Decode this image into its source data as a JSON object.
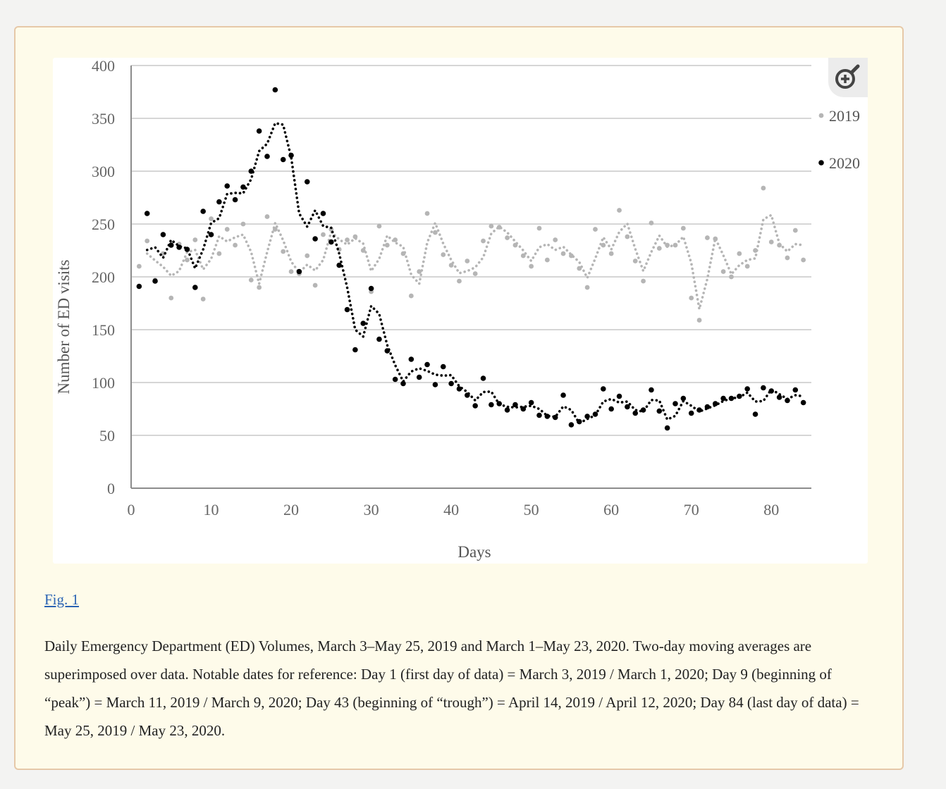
{
  "figure": {
    "link_label": "Fig. 1",
    "caption": "Daily Emergency Department (ED) Volumes, March 3–May 25, 2019 and March 1–May 23, 2020. Two-day moving averages are superimposed over data. Notable dates for reference: Day 1 (first day of data) = March 3, 2019 / March 1, 2020; Day 9 (beginning of “peak”) = March 11, 2019 / March 9, 2020; Day 43 (beginning of “trough”) = April 14, 2019 / April 12, 2020; Day 84 (last day of data) = May 25, 2019 / May 23, 2020.",
    "zoom_icon": "zoom-in-icon"
  },
  "chart_data": {
    "type": "scatter",
    "title": "",
    "xlabel": "Days",
    "ylabel": "Number of ED visits",
    "xlim": [
      0,
      85
    ],
    "ylim": [
      0,
      400
    ],
    "xticks": [
      0,
      10,
      20,
      30,
      40,
      50,
      60,
      70,
      80
    ],
    "yticks": [
      0,
      50,
      100,
      150,
      200,
      250,
      300,
      350,
      400
    ],
    "grid": true,
    "legend_position": "top-right",
    "trendline": "two-day moving average (dotted)",
    "series": [
      {
        "name": "2019",
        "color": "#b5b5b5",
        "x": [
          1,
          2,
          3,
          4,
          5,
          6,
          7,
          8,
          9,
          10,
          11,
          12,
          13,
          14,
          15,
          16,
          17,
          18,
          19,
          20,
          21,
          22,
          23,
          24,
          25,
          26,
          27,
          28,
          29,
          30,
          31,
          32,
          33,
          34,
          35,
          36,
          37,
          38,
          39,
          40,
          41,
          42,
          43,
          44,
          45,
          46,
          47,
          48,
          49,
          50,
          51,
          52,
          53,
          54,
          55,
          56,
          57,
          58,
          59,
          60,
          61,
          62,
          63,
          64,
          65,
          66,
          67,
          68,
          69,
          70,
          71,
          72,
          73,
          74,
          75,
          76,
          77,
          78,
          79,
          80,
          81,
          82,
          83,
          84
        ],
        "values": [
          210,
          234,
          197,
          222,
          180,
          231,
          216,
          235,
          179,
          255,
          222,
          245,
          230,
          250,
          197,
          190,
          257,
          245,
          224,
          205,
          203,
          220,
          192,
          240,
          245,
          226,
          235,
          238,
          225,
          186,
          248,
          230,
          235,
          222,
          182,
          205,
          260,
          242,
          221,
          211,
          196,
          215,
          203,
          234,
          248,
          247,
          237,
          230,
          220,
          210,
          246,
          216,
          235,
          222,
          220,
          208,
          190,
          245,
          230,
          222,
          263,
          238,
          215,
          196,
          251,
          227,
          230,
          230,
          246,
          180,
          159,
          237,
          236,
          205,
          200,
          222,
          210,
          225,
          284,
          233,
          230,
          218,
          244,
          216
        ]
      },
      {
        "name": "2020",
        "color": "#000000",
        "x": [
          1,
          2,
          3,
          4,
          5,
          6,
          7,
          8,
          9,
          10,
          11,
          12,
          13,
          14,
          15,
          16,
          17,
          18,
          19,
          20,
          21,
          22,
          23,
          24,
          25,
          26,
          27,
          28,
          29,
          30,
          31,
          32,
          33,
          34,
          35,
          36,
          37,
          38,
          39,
          40,
          41,
          42,
          43,
          44,
          45,
          46,
          47,
          48,
          49,
          50,
          51,
          52,
          53,
          54,
          55,
          56,
          57,
          58,
          59,
          60,
          61,
          62,
          63,
          64,
          65,
          66,
          67,
          68,
          69,
          70,
          71,
          72,
          73,
          74,
          75,
          76,
          77,
          78,
          79,
          80,
          81,
          82,
          83,
          84
        ],
        "values": [
          191,
          260,
          196,
          240,
          230,
          228,
          226,
          190,
          262,
          240,
          271,
          286,
          273,
          285,
          300,
          338,
          314,
          377,
          311,
          315,
          205,
          290,
          236,
          260,
          233,
          211,
          169,
          131,
          156,
          189,
          141,
          130,
          103,
          99,
          122,
          105,
          117,
          98,
          115,
          99,
          94,
          88,
          78,
          104,
          79,
          80,
          74,
          79,
          75,
          81,
          69,
          68,
          67,
          88,
          60,
          63,
          68,
          70,
          94,
          75,
          87,
          77,
          71,
          74,
          93,
          73,
          57,
          80,
          85,
          71,
          74,
          77,
          80,
          85,
          85,
          87,
          94,
          70,
          95,
          92,
          86,
          83,
          93,
          81
        ]
      }
    ]
  }
}
